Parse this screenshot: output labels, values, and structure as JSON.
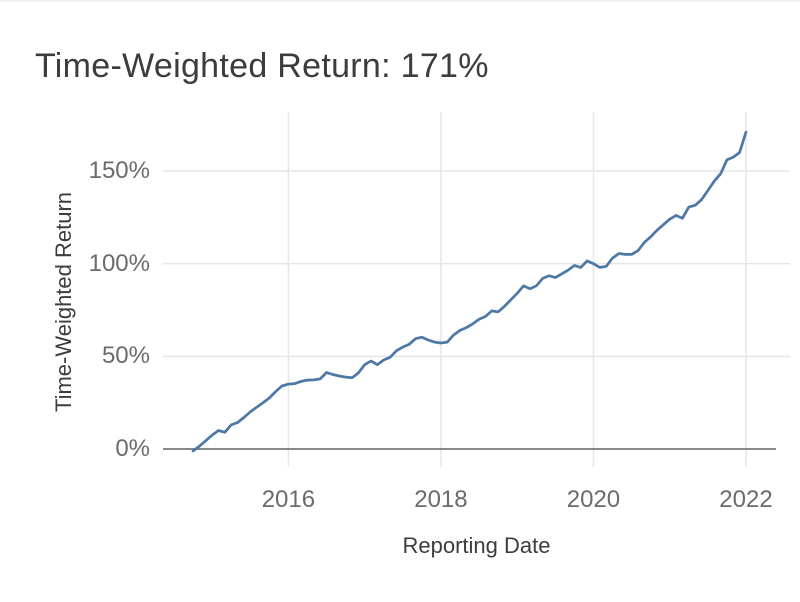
{
  "header": {
    "title": "Time-Weighted Return: 171%"
  },
  "chart_data": {
    "type": "line",
    "title": "Time-Weighted Return: 171%",
    "xlabel": "Reporting Date",
    "ylabel": "Time-Weighted Return",
    "legend": false,
    "grid": true,
    "line_color": "#4e79a7",
    "grid_color": "#e6e6e6",
    "zero_line_color": "#787878",
    "y_tick_labels": [
      "0%",
      "50%",
      "100%",
      "150%"
    ],
    "y_tick_values": [
      0,
      50,
      100,
      150
    ],
    "x_tick_labels": [
      "2016",
      "2018",
      "2020",
      "2022"
    ],
    "x_tick_years": [
      2016,
      2018,
      2020,
      2022
    ],
    "ylim": [
      -12,
      182
    ],
    "xlim": [
      "2014-10",
      "2022-01"
    ],
    "series": [
      {
        "name": "Time-Weighted Return",
        "start_month": "2014-10",
        "interval": "monthly",
        "final_value_pct": 171,
        "values": [
          -1,
          1.5,
          4.5,
          7.5,
          10,
          9,
          13,
          14.3,
          17,
          20,
          22.5,
          25,
          27.5,
          31,
          34,
          35,
          35.3,
          36.5,
          37.2,
          37.3,
          37.8,
          41.3,
          40.2,
          39.4,
          38.8,
          38.4,
          41,
          45.5,
          47.5,
          45.5,
          48,
          49.5,
          53,
          55,
          56.5,
          59.5,
          60.3,
          58.8,
          57.7,
          57.2,
          57.7,
          61.5,
          64,
          65.5,
          67.5,
          70,
          71.5,
          74.5,
          74,
          77,
          80.5,
          84,
          88,
          86.5,
          88,
          92,
          93.5,
          92.5,
          94.5,
          96.5,
          99,
          98,
          101.5,
          100,
          98,
          98.5,
          103,
          105.5,
          105,
          105,
          107,
          111.5,
          114.5,
          118,
          121,
          124,
          126,
          124.5,
          130.5,
          131.5,
          134.5,
          139.5,
          144.5,
          148.5,
          156,
          157.5,
          160,
          171
        ]
      }
    ]
  }
}
